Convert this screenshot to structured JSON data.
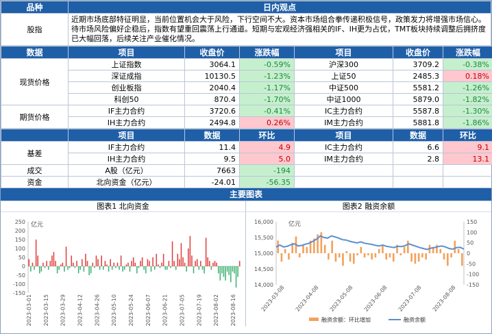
{
  "header": {
    "col1": "品种",
    "col2": "日内观点"
  },
  "view": {
    "label": "股指",
    "text": "近期市场底部特征明显，当前位置机会大于风险，下行空间不大。资本市场组合拳传递积极信号，政策发力将增强市场信心。待市场风险偏好企稳后，指数有望重回震荡上行通道。短期与宏观经济强相关的IF、IH更为占优，TMT板块持续调整后拥挤度已大幅回落，后续关注产业催化情况。"
  },
  "table1": {
    "headers": [
      "数据",
      "项目",
      "收盘价",
      "涨跌幅",
      "项目",
      "收盘价",
      "涨跌幅"
    ],
    "spot_label": "现货价格",
    "spot_rows": [
      {
        "n1": "上证指数",
        "v1": "3064.1",
        "c1": "-0.59%",
        "n2": "沪深300",
        "v2": "3709.2",
        "c2": "-0.38%"
      },
      {
        "n1": "深证成指",
        "v1": "10130.5",
        "c1": "-1.23%",
        "n2": "上证50",
        "v2": "2485.3",
        "c2": "0.18%"
      },
      {
        "n1": "创业板指",
        "v1": "2040.4",
        "c1": "-1.17%",
        "n2": "中证500",
        "v2": "5581.2",
        "c2": "-1.26%"
      },
      {
        "n1": "科创50",
        "v1": "870.4",
        "c1": "-1.70%",
        "n2": "中证1000",
        "v2": "5879.0",
        "c2": "-1.82%"
      }
    ],
    "fut_label": "期货价格",
    "fut_rows": [
      {
        "n1": "IF主力合约",
        "v1": "3720.6",
        "c1": "-0.41%",
        "n2": "IC主力合约",
        "v2": "5587.8",
        "c2": "-1.30%"
      },
      {
        "n1": "IH主力合约",
        "v1": "2494.8",
        "c1": "0.26%",
        "n2": "IM主力合约",
        "v2": "5881.8",
        "c2": "-1.86%"
      }
    ]
  },
  "table2": {
    "headers": [
      "项目",
      "数据",
      "环比",
      "项目",
      "数据",
      "环比"
    ],
    "basis_label": "基差",
    "basis_rows": [
      {
        "n1": "IF主力合约",
        "v1": "11.4",
        "c1": "4.9",
        "n2": "IC主力合约",
        "v2": "6.6",
        "c2": "9.1"
      },
      {
        "n1": "IH主力合约",
        "v1": "9.5",
        "c1": "5.0",
        "n2": "IM主力合约",
        "v2": "2.8",
        "c2": "13.1"
      }
    ],
    "vol_label": "成交",
    "vol_item": "A股（亿元）",
    "vol_value": "7663",
    "vol_change": "-194",
    "cap_label": "资金",
    "cap_item": "北向资金（亿元）",
    "cap_value": "-24.01",
    "cap_change": "-56.35"
  },
  "charts_section": "主要图表",
  "chart_data": [
    {
      "type": "bar",
      "title": "图表1  北向资金",
      "ylabel": "亿元",
      "ylim": [
        -150,
        250
      ],
      "yticks": [
        -150,
        -100,
        -50,
        0,
        50,
        100,
        150,
        200,
        250
      ],
      "xticks": [
        "2023-03-01",
        "2023-03-15",
        "2023-03-29",
        "2023-04-12",
        "2023-04-26",
        "2023-05-10",
        "2023-05-24",
        "2023-06-07",
        "2023-06-21",
        "2023-07-05",
        "2023-07-19",
        "2023-08-02",
        "2023-08-16"
      ],
      "values": [
        40,
        -30,
        20,
        -20,
        150,
        60,
        -40,
        -30,
        20,
        -10,
        30,
        -20,
        30,
        60,
        80,
        30,
        -40,
        -20,
        10,
        20,
        -30,
        110,
        -20,
        -10,
        60,
        20,
        -10,
        30,
        -40,
        -20,
        40,
        -30,
        70,
        30,
        -50,
        -40,
        20,
        -10,
        60,
        40,
        -20,
        60,
        -20,
        30,
        10,
        -30,
        40,
        -20,
        20,
        -10,
        20,
        -20,
        60,
        -30,
        -20,
        10,
        20,
        -30,
        30,
        50,
        20,
        -40,
        -10,
        30,
        50,
        -20,
        -40,
        40,
        30,
        -30,
        50,
        -20,
        70,
        10,
        -10,
        20,
        70,
        -20,
        -20,
        30,
        -10,
        140,
        30,
        -20,
        70,
        40,
        130,
        50,
        20,
        -30,
        100,
        170,
        60,
        -40,
        30,
        40,
        -20,
        30,
        -20,
        -40,
        160,
        50,
        30,
        -20,
        20,
        30,
        20,
        -40,
        -80,
        -40,
        -60,
        -80,
        -30,
        -50,
        -90,
        -30,
        -40,
        -120,
        -60,
        30
      ]
    },
    {
      "type": "line",
      "title": "图表2  融资余额",
      "ylabel": "亿元",
      "ylim_left": [
        14000,
        16000
      ],
      "ylim_right": [
        -150,
        150
      ],
      "yticks_left": [
        14000,
        14500,
        15000,
        15500,
        16000
      ],
      "yticks_right": [
        -150,
        -100,
        -50,
        0,
        50,
        100,
        150
      ],
      "xticks": [
        "2023-03-08",
        "2023-04-08",
        "2023-05-08",
        "2023-06-08",
        "2023-07-08",
        "2023-08-08"
      ],
      "line_values": [
        15200,
        15260,
        15200,
        15220,
        15270,
        15300,
        15230,
        15250,
        15290,
        15320,
        15380,
        15450,
        15550,
        15500,
        15480,
        15550,
        15520,
        15480,
        15430,
        15420,
        15380,
        15350,
        15330,
        15360,
        15320,
        15300,
        15280,
        15250,
        15230,
        15260,
        15220,
        15200,
        15180,
        15220,
        15210,
        15240,
        15300,
        15260,
        15220,
        15180,
        15150,
        15120,
        15160,
        15180,
        15210,
        15230,
        15200,
        15150,
        15130,
        15180,
        15190,
        15130
      ],
      "bar_values": [
        60,
        -40,
        20,
        -30,
        50,
        80,
        -20,
        40,
        30,
        60,
        70,
        90,
        100,
        40,
        -30,
        60,
        -40,
        -20,
        -60,
        10,
        -40,
        -50,
        -10,
        30,
        -20,
        -10,
        -30,
        -20,
        20,
        40,
        -30,
        -20,
        -40,
        40,
        -10,
        30,
        60,
        -40,
        -50,
        -40,
        -20,
        -30,
        40,
        30,
        40,
        20,
        -30,
        -60,
        -20,
        60,
        20,
        -60
      ],
      "legend": [
        "融资余额：环比增加",
        "融资余额"
      ],
      "colors": {
        "bars": "#f2a25c",
        "line": "#5b8ed0"
      }
    }
  ]
}
